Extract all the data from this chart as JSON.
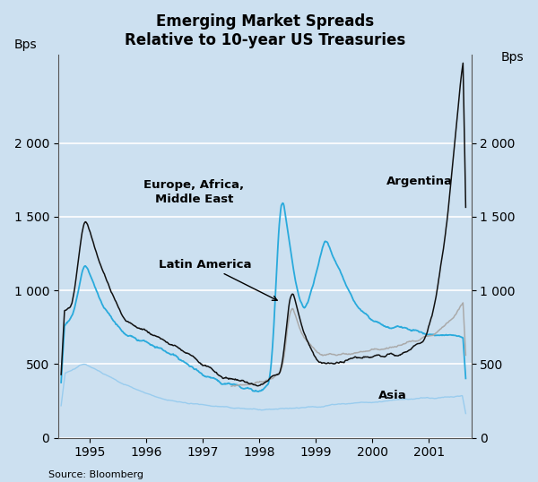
{
  "title": "Emerging Market Spreads",
  "subtitle": "Relative to 10-year US Treasuries",
  "ylabel": "Bps",
  "source": "Source: Bloomberg",
  "background_color": "#cce0f0",
  "ylim": [
    0,
    2600
  ],
  "yticks": [
    0,
    500,
    1000,
    1500,
    2000
  ],
  "xlim": [
    1994.45,
    2001.75
  ],
  "xticks": [
    1995,
    1996,
    1997,
    1998,
    1999,
    2000,
    2001
  ],
  "colors": {
    "latin_america": "#111111",
    "europe": "#29aadc",
    "asia": "#99ccee",
    "gray": "#aaaaaa"
  }
}
